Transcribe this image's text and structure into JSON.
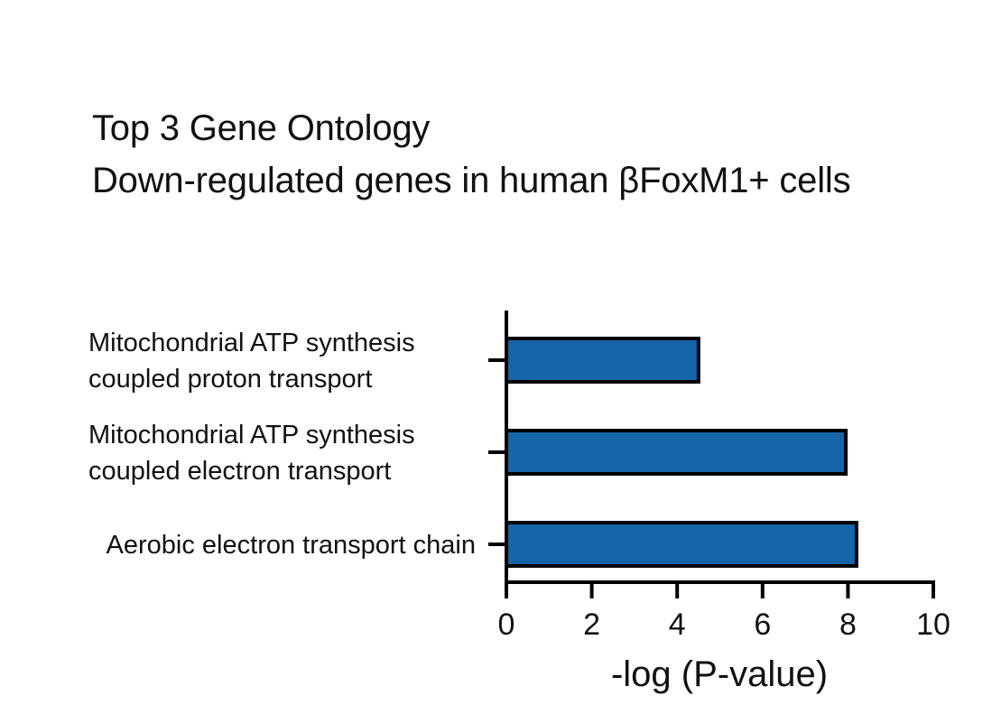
{
  "chart_data": {
    "type": "bar",
    "orientation": "horizontal",
    "title": [
      "Top 3 Gene Ontology",
      "Down-regulated genes in human βFoxM1+ cells"
    ],
    "categories": [
      [
        "Mitochondrial ATP synthesis",
        "coupled proton transport"
      ],
      [
        "Mitochondrial ATP synthesis",
        "coupled electron transport"
      ],
      [
        "Aerobic electron transport chain"
      ]
    ],
    "values": [
      4.5,
      7.95,
      8.2
    ],
    "xlabel": "-log (P-value)",
    "ylabel": "",
    "xlim": [
      0,
      10
    ],
    "xticks": [
      "0",
      "2",
      "4",
      "6",
      "8",
      "10"
    ],
    "grid": false,
    "legend": "none",
    "colors": {
      "bar_fill": "#1565a8",
      "bar_stroke": "#000000",
      "axis": "#000000",
      "text": "#111111"
    }
  }
}
